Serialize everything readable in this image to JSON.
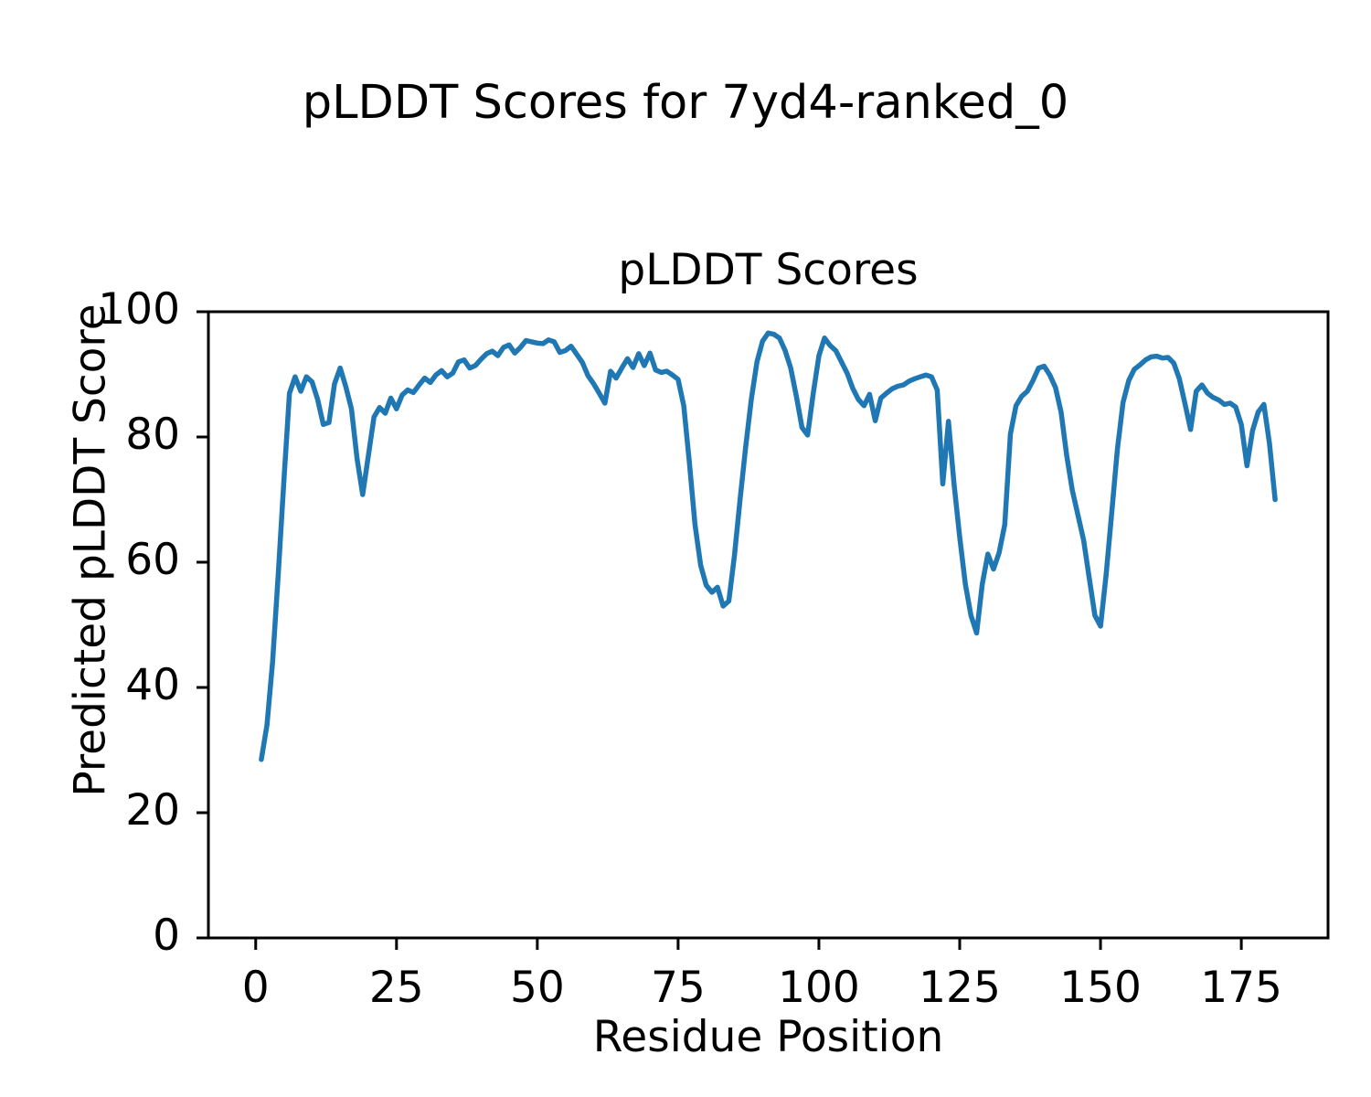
{
  "figure": {
    "suptitle": "pLDDT Scores for 7yd4-ranked_0"
  },
  "chart_data": {
    "type": "line",
    "title": "pLDDT Scores",
    "xlabel": "Residue Position",
    "ylabel": "Predicted pLDDT Score",
    "xlim": [
      -8.4,
      190.4
    ],
    "ylim": [
      0,
      100
    ],
    "xticks": [
      0,
      25,
      50,
      75,
      100,
      125,
      150,
      175
    ],
    "yticks": [
      0,
      20,
      40,
      60,
      80,
      100
    ],
    "grid": false,
    "legend": "none",
    "line_color": "#1f77b4",
    "axis_color": "#000000",
    "x": [
      1,
      2,
      3,
      4,
      5,
      6,
      7,
      8,
      9,
      10,
      11,
      12,
      13,
      14,
      15,
      16,
      17,
      18,
      19,
      20,
      21,
      22,
      23,
      24,
      25,
      26,
      27,
      28,
      29,
      30,
      31,
      32,
      33,
      34,
      35,
      36,
      37,
      38,
      39,
      40,
      41,
      42,
      43,
      44,
      45,
      46,
      47,
      48,
      49,
      50,
      51,
      52,
      53,
      54,
      55,
      56,
      57,
      58,
      59,
      60,
      61,
      62,
      63,
      64,
      65,
      66,
      67,
      68,
      69,
      70,
      71,
      72,
      73,
      74,
      75,
      76,
      77,
      78,
      79,
      80,
      81,
      82,
      83,
      84,
      85,
      86,
      87,
      88,
      89,
      90,
      91,
      92,
      93,
      94,
      95,
      96,
      97,
      98,
      99,
      100,
      101,
      102,
      103,
      104,
      105,
      106,
      107,
      108,
      109,
      110,
      111,
      112,
      113,
      114,
      115,
      116,
      117,
      118,
      119,
      120,
      121,
      122,
      123,
      124,
      125,
      126,
      127,
      128,
      129,
      130,
      131,
      132,
      133,
      134,
      135,
      136,
      137,
      138,
      139,
      140,
      141,
      142,
      143,
      144,
      145,
      146,
      147,
      148,
      149,
      150,
      151,
      152,
      153,
      154,
      155,
      156,
      157,
      158,
      159,
      160,
      161,
      162,
      163,
      164,
      165,
      166,
      167,
      168,
      169,
      170,
      171,
      172,
      173,
      174,
      175,
      176,
      177,
      178,
      179,
      180,
      181
    ],
    "values": [
      28.5,
      34.0,
      44.0,
      58.0,
      73.0,
      87.0,
      89.6,
      87.3,
      89.6,
      88.8,
      86.0,
      82.0,
      82.3,
      88.5,
      91.0,
      88.0,
      84.5,
      76.5,
      70.8,
      77.0,
      83.2,
      84.7,
      83.8,
      86.2,
      84.5,
      86.7,
      87.5,
      87.1,
      88.3,
      89.4,
      88.7,
      89.9,
      90.6,
      89.6,
      90.2,
      92.0,
      92.3,
      91.0,
      91.4,
      92.4,
      93.3,
      93.7,
      93.0,
      94.3,
      94.7,
      93.4,
      94.3,
      95.4,
      95.2,
      95.0,
      94.9,
      95.5,
      95.2,
      93.5,
      93.8,
      94.5,
      93.2,
      91.9,
      89.8,
      88.5,
      87.0,
      85.4,
      90.5,
      89.4,
      91.0,
      92.5,
      91.1,
      93.3,
      91.4,
      93.4,
      90.7,
      90.3,
      90.5,
      89.9,
      89.2,
      85.0,
      76.0,
      66.0,
      59.5,
      56.3,
      55.2,
      56.0,
      53.0,
      53.8,
      61.0,
      70.0,
      78.5,
      86.0,
      92.0,
      95.3,
      96.6,
      96.4,
      95.8,
      93.8,
      91.0,
      86.5,
      81.5,
      80.3,
      87.0,
      93.0,
      95.8,
      94.6,
      93.8,
      92.0,
      90.2,
      87.8,
      86.0,
      85.0,
      86.8,
      82.6,
      86.2,
      87.0,
      87.7,
      88.1,
      88.3,
      88.9,
      89.3,
      89.6,
      89.9,
      89.6,
      87.5,
      72.5,
      82.5,
      72.5,
      64.0,
      56.5,
      51.5,
      48.7,
      56.5,
      61.3,
      58.9,
      61.5,
      66.0,
      80.5,
      85.0,
      86.5,
      87.3,
      89.0,
      91.0,
      91.3,
      89.9,
      87.9,
      84.0,
      77.0,
      71.5,
      67.5,
      63.5,
      57.5,
      51.5,
      49.8,
      58.0,
      68.0,
      78.0,
      85.5,
      89.0,
      90.8,
      91.5,
      92.3,
      92.8,
      92.9,
      92.6,
      92.7,
      91.8,
      89.3,
      85.3,
      81.2,
      87.3,
      88.3,
      87.0,
      86.3,
      85.9,
      85.2,
      85.4,
      84.8,
      82.0,
      75.4,
      81.0,
      84.0,
      85.2,
      79.0,
      70.0
    ]
  }
}
